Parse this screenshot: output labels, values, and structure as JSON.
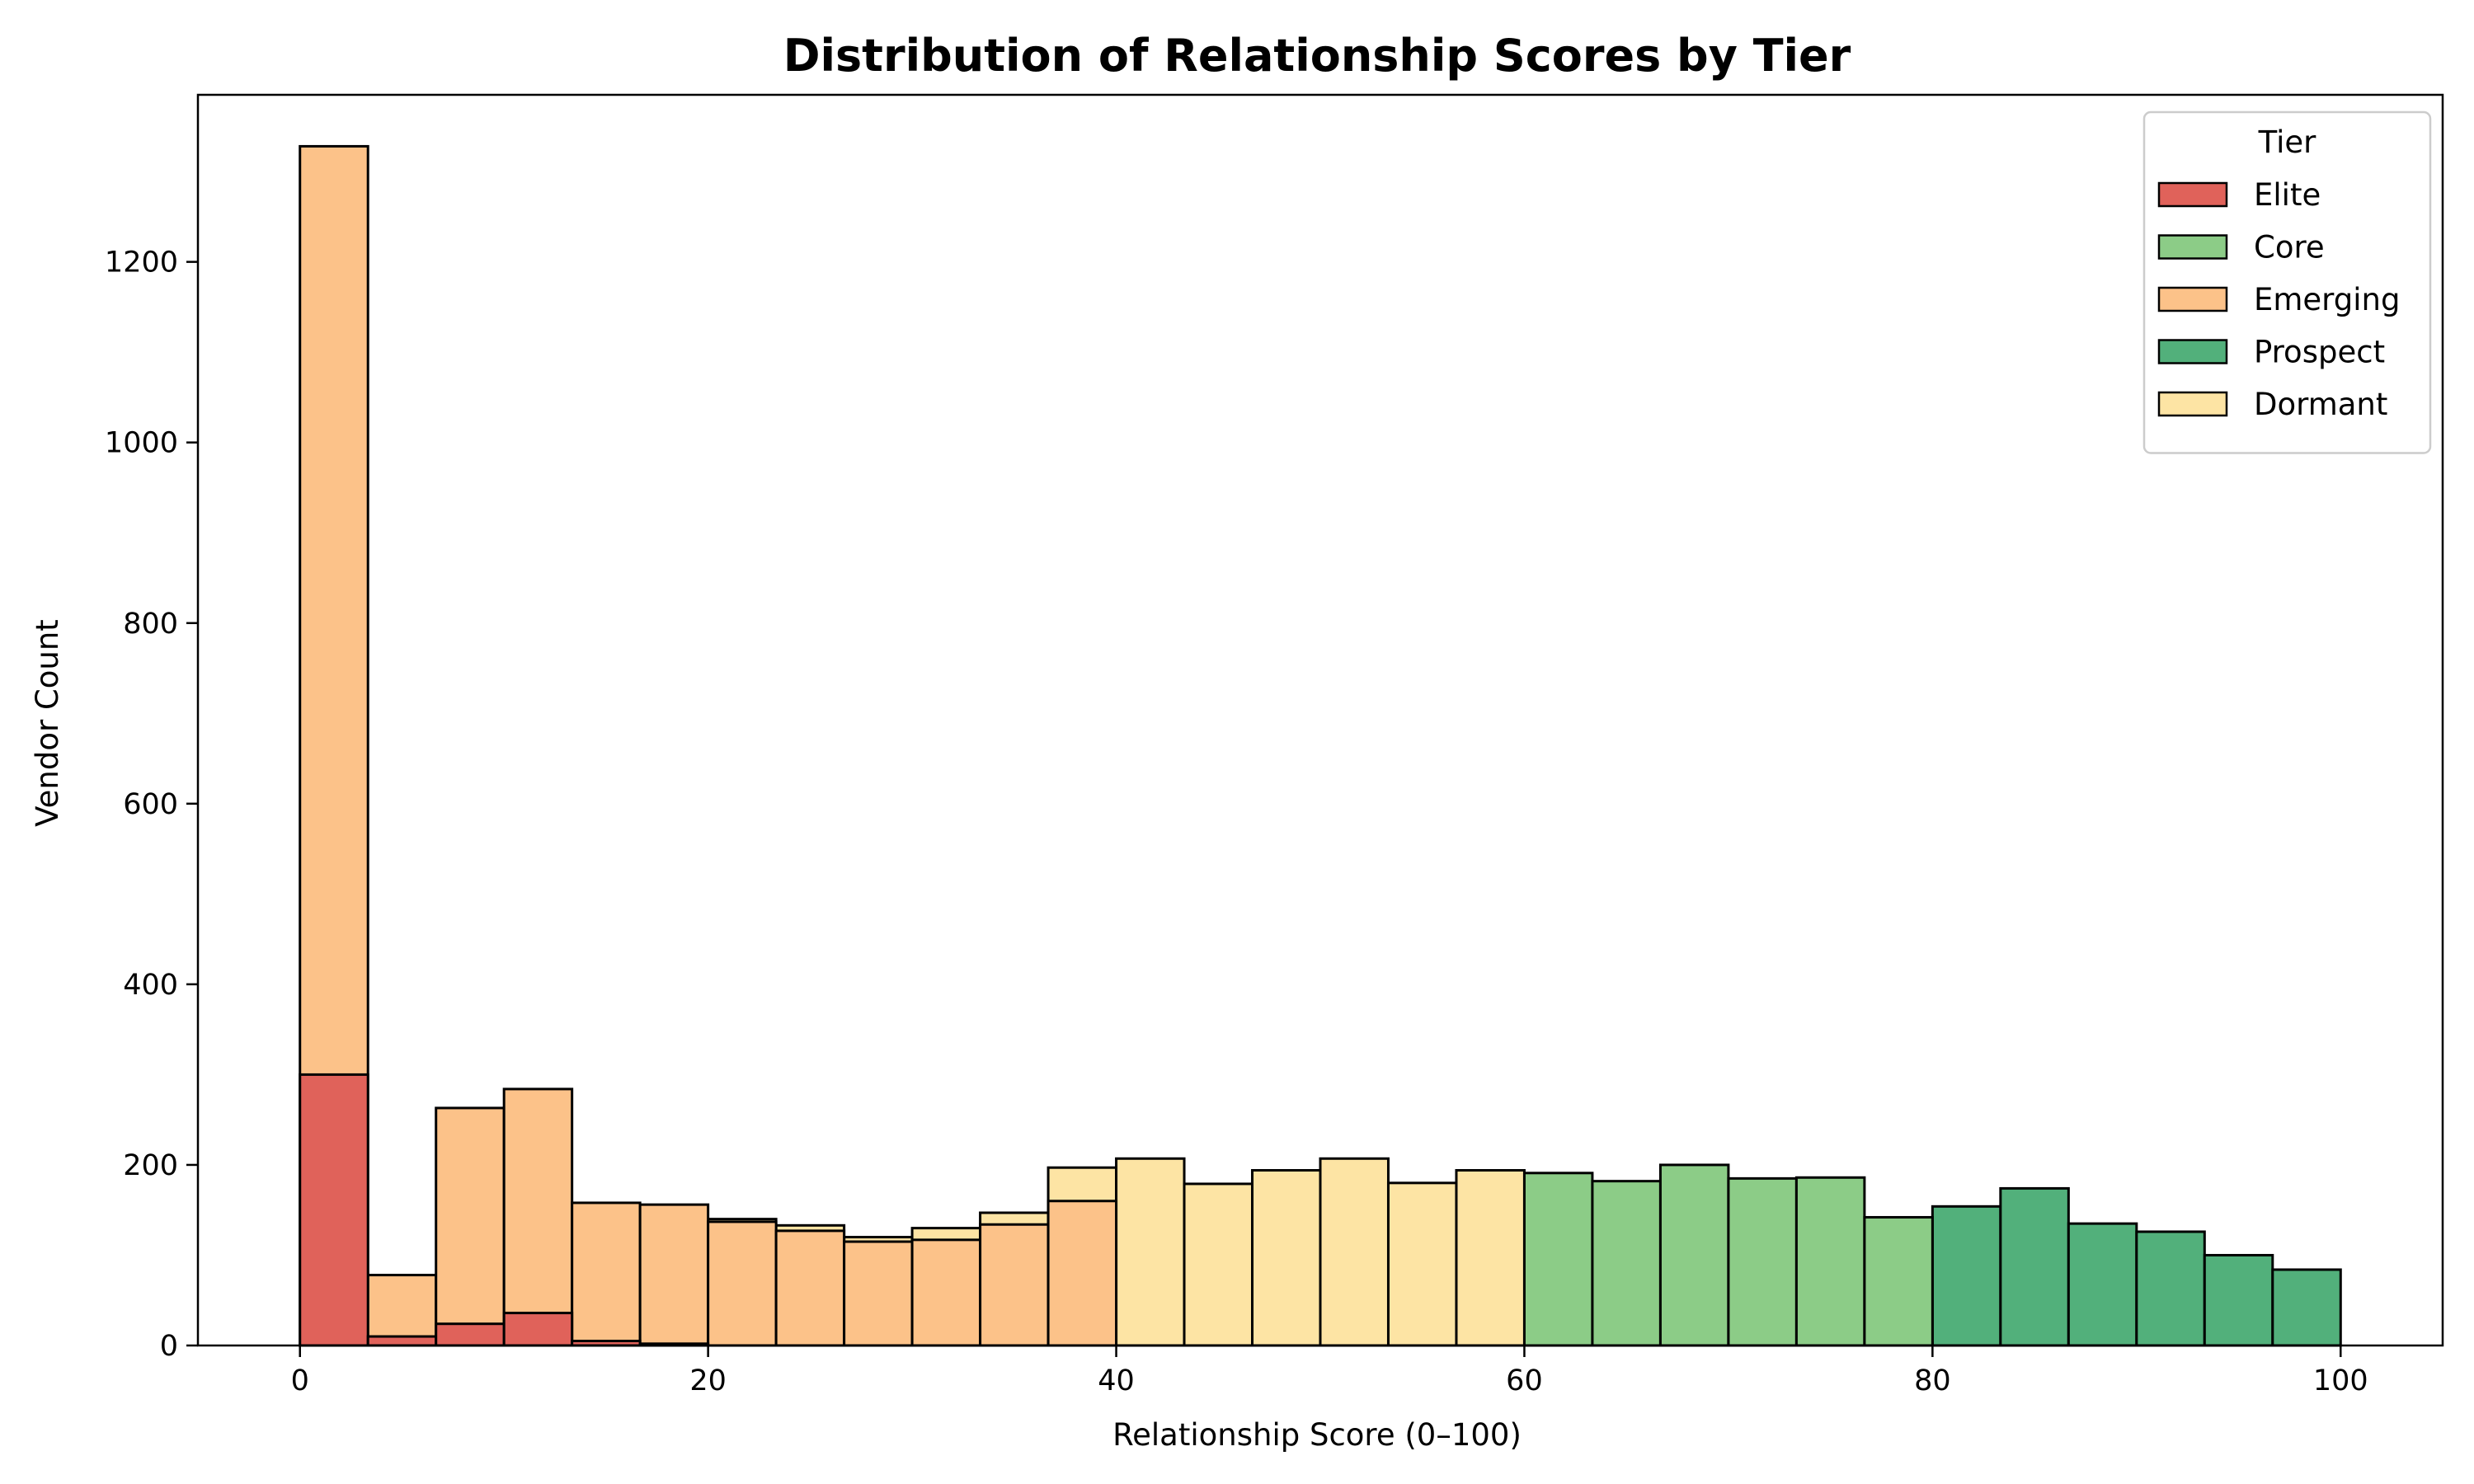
{
  "chart_data": {
    "type": "bar",
    "title": "Distribution of Relationship Scores by Tier",
    "xlabel": "Relationship Score (0–100)",
    "ylabel": "Vendor Count",
    "xlim": [
      -5,
      105
    ],
    "ylim": [
      0,
      1385
    ],
    "x_ticks": [
      0,
      20,
      40,
      60,
      80,
      100
    ],
    "y_ticks": [
      0,
      200,
      400,
      600,
      800,
      1000,
      1200
    ],
    "grid": false,
    "legend": {
      "title": "Tier",
      "placement": "top-right"
    },
    "bin_edges": [
      0,
      3.333,
      6.667,
      10,
      13.333,
      16.667,
      20,
      23.333,
      26.667,
      30,
      33.333,
      36.667,
      40,
      43.333,
      46.667,
      50,
      53.333,
      56.667,
      60,
      63.333,
      66.667,
      70,
      73.333,
      76.667,
      80,
      83.333,
      86.667,
      90,
      93.333,
      96.667,
      100
    ],
    "series": [
      {
        "name": "Elite",
        "color": "#e0625a",
        "values": [
          300,
          10,
          24,
          36,
          5,
          2,
          0,
          0,
          0,
          0,
          0,
          0,
          0,
          0,
          0,
          0,
          0,
          0,
          0,
          0,
          0,
          0,
          0,
          0,
          0,
          0,
          0,
          0,
          0,
          0
        ]
      },
      {
        "name": "Core",
        "color": "#8ccc87",
        "values": [
          0,
          0,
          0,
          0,
          0,
          0,
          0,
          0,
          0,
          0,
          0,
          0,
          0,
          0,
          0,
          0,
          0,
          0,
          191,
          182,
          200,
          185,
          186,
          142,
          0,
          0,
          0,
          0,
          0,
          0
        ]
      },
      {
        "name": "Emerging",
        "color": "#fcc289",
        "values": [
          1328,
          78,
          263,
          284,
          158,
          156,
          137,
          127,
          115,
          117,
          134,
          160,
          0,
          0,
          0,
          0,
          0,
          0,
          0,
          0,
          0,
          0,
          0,
          0,
          0,
          0,
          0,
          0,
          0,
          0
        ]
      },
      {
        "name": "Prospect",
        "color": "#52b07b",
        "values": [
          0,
          0,
          0,
          0,
          0,
          0,
          0,
          0,
          0,
          0,
          0,
          0,
          0,
          0,
          0,
          0,
          0,
          0,
          0,
          0,
          0,
          0,
          0,
          0,
          154,
          174,
          135,
          126,
          100,
          84
        ]
      },
      {
        "name": "Dormant",
        "color": "#fde4a4",
        "values": [
          0,
          0,
          0,
          0,
          0,
          0,
          140,
          133,
          120,
          130,
          147,
          197,
          207,
          179,
          194,
          207,
          180,
          194,
          0,
          0,
          0,
          0,
          0,
          0,
          0,
          0,
          0,
          0,
          0,
          0
        ]
      }
    ],
    "draw_order": [
      "Dormant",
      "Prospect",
      "Emerging",
      "Core",
      "Elite"
    ]
  }
}
